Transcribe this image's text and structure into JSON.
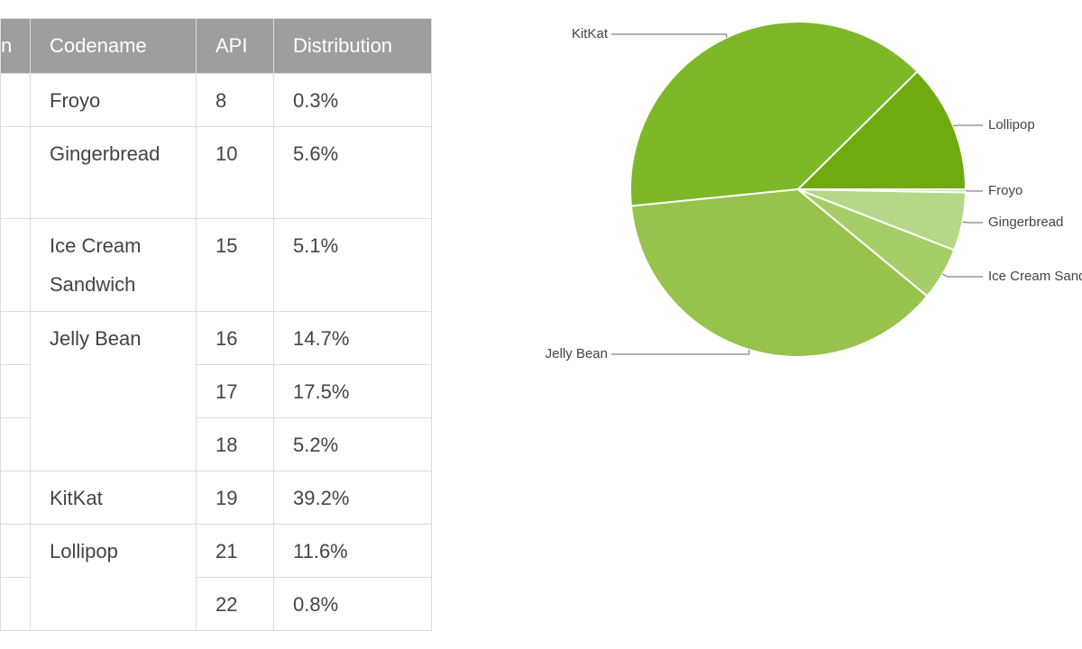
{
  "table": {
    "headers": [
      "n",
      "Codename",
      "API",
      "Distribution"
    ],
    "groups": [
      {
        "codename": "Froyo",
        "versions": [
          {
            "api": "8",
            "distribution": "0.3%"
          }
        ]
      },
      {
        "codename": "Gingerbread",
        "versions": [
          {
            "api": "10",
            "distribution": "5.6%"
          }
        ]
      },
      {
        "codename": "Ice Cream Sandwich",
        "versions": [
          {
            "api": "15",
            "distribution": "5.1%"
          }
        ]
      },
      {
        "codename": "Jelly Bean",
        "versions": [
          {
            "api": "16",
            "distribution": "14.7%"
          },
          {
            "api": "17",
            "distribution": "17.5%"
          },
          {
            "api": "18",
            "distribution": "5.2%"
          }
        ]
      },
      {
        "codename": "KitKat",
        "versions": [
          {
            "api": "19",
            "distribution": "39.2%"
          }
        ]
      },
      {
        "codename": "Lollipop",
        "versions": [
          {
            "api": "21",
            "distribution": "11.6%"
          },
          {
            "api": "22",
            "distribution": "0.8%"
          }
        ]
      }
    ]
  },
  "chart_data": {
    "type": "pie",
    "labels": [
      "Lollipop",
      "KitKat",
      "Jelly Bean",
      "Ice Cream Sandwich",
      "Gingerbread",
      "Froyo"
    ],
    "values": [
      12.4,
      39.2,
      37.4,
      5.1,
      5.6,
      0.3
    ],
    "colors": [
      "#6fab10",
      "#7db828",
      "#97c24b",
      "#a6ce68",
      "#b4d888",
      "#c8e4a4"
    ]
  }
}
